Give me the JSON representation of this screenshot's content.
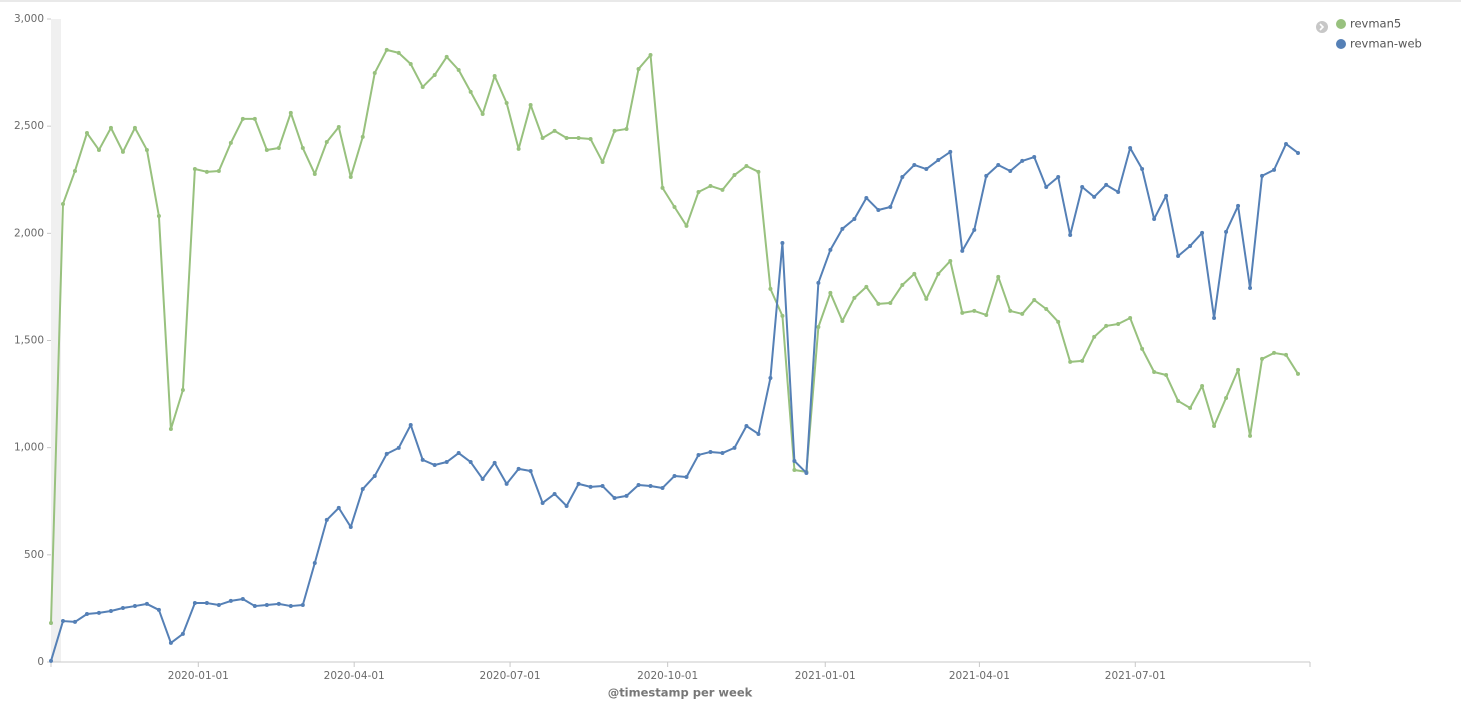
{
  "chart_data": {
    "type": "line",
    "x_label": "@timestamp per week",
    "x": [
      "2019-10-07",
      "2019-10-14",
      "2019-10-21",
      "2019-10-28",
      "2019-11-04",
      "2019-11-11",
      "2019-11-18",
      "2019-11-25",
      "2019-12-02",
      "2019-12-09",
      "2019-12-16",
      "2019-12-23",
      "2019-12-30",
      "2020-01-06",
      "2020-01-13",
      "2020-01-20",
      "2020-01-27",
      "2020-02-03",
      "2020-02-10",
      "2020-02-17",
      "2020-02-24",
      "2020-03-02",
      "2020-03-09",
      "2020-03-16",
      "2020-03-23",
      "2020-03-30",
      "2020-04-06",
      "2020-04-13",
      "2020-04-20",
      "2020-04-27",
      "2020-05-04",
      "2020-05-11",
      "2020-05-18",
      "2020-05-25",
      "2020-06-01",
      "2020-06-08",
      "2020-06-15",
      "2020-06-22",
      "2020-06-29",
      "2020-07-06",
      "2020-07-13",
      "2020-07-20",
      "2020-07-27",
      "2020-08-03",
      "2020-08-10",
      "2020-08-17",
      "2020-08-24",
      "2020-08-31",
      "2020-09-07",
      "2020-09-14",
      "2020-09-21",
      "2020-09-28",
      "2020-10-05",
      "2020-10-12",
      "2020-10-19",
      "2020-10-26",
      "2020-11-02",
      "2020-11-09",
      "2020-11-16",
      "2020-11-23",
      "2020-11-30",
      "2020-12-07",
      "2020-12-14",
      "2020-12-21",
      "2020-12-28",
      "2021-01-04",
      "2021-01-11",
      "2021-01-18",
      "2021-01-25",
      "2021-02-01",
      "2021-02-08",
      "2021-02-15",
      "2021-02-22",
      "2021-03-01",
      "2021-03-08",
      "2021-03-15",
      "2021-03-22",
      "2021-03-29",
      "2021-04-05",
      "2021-04-12",
      "2021-04-19",
      "2021-04-26",
      "2021-05-03",
      "2021-05-10",
      "2021-05-17",
      "2021-05-24",
      "2021-05-31",
      "2021-06-07",
      "2021-06-14",
      "2021-06-21",
      "2021-06-28",
      "2021-07-05",
      "2021-07-12",
      "2021-07-19",
      "2021-07-26",
      "2021-08-02",
      "2021-08-09",
      "2021-08-16",
      "2021-08-23",
      "2021-08-30",
      "2021-09-06",
      "2021-09-13",
      "2021-09-20",
      "2021-09-27",
      "2021-10-04"
    ],
    "series": [
      {
        "name": "revman5",
        "color": "#98c17e",
        "values": [
          182,
          2137,
          2291,
          2468,
          2389,
          2492,
          2380,
          2492,
          2389,
          2081,
          1087,
          1269,
          2300,
          2287,
          2291,
          2422,
          2534,
          2534,
          2389,
          2398,
          2562,
          2398,
          2277,
          2426,
          2496,
          2263,
          2450,
          2748,
          2856,
          2842,
          2790,
          2683,
          2739,
          2823,
          2762,
          2660,
          2557,
          2734,
          2608,
          2394,
          2599,
          2445,
          2478,
          2445,
          2445,
          2440,
          2333,
          2478,
          2487,
          2767,
          2832,
          2212,
          2123,
          2035,
          2193,
          2221,
          2203,
          2272,
          2314,
          2287,
          1741,
          1615,
          896,
          887,
          1563,
          1722,
          1591,
          1699,
          1750,
          1671,
          1675,
          1759,
          1811,
          1694,
          1811,
          1871,
          1629,
          1638,
          1619,
          1797,
          1638,
          1624,
          1689,
          1647,
          1587,
          1400,
          1405,
          1517,
          1568,
          1577,
          1605,
          1461,
          1353,
          1339,
          1218,
          1185,
          1288,
          1101,
          1232,
          1363,
          1055,
          1414,
          1442,
          1433,
          1344
        ]
      },
      {
        "name": "revman-web",
        "color": "#5580b6",
        "values": [
          5,
          191,
          187,
          224,
          229,
          238,
          252,
          261,
          271,
          243,
          89,
          131,
          275,
          275,
          266,
          285,
          294,
          261,
          266,
          271,
          261,
          266,
          462,
          663,
          719,
          630,
          807,
          868,
          971,
          999,
          1106,
          943,
          919,
          933,
          975,
          933,
          854,
          929,
          831,
          901,
          891,
          742,
          784,
          728,
          831,
          817,
          821,
          765,
          775,
          826,
          821,
          812,
          868,
          863,
          966,
          980,
          975,
          999,
          1101,
          1064,
          1325,
          1955,
          938,
          882,
          1769,
          1923,
          2021,
          2067,
          2165,
          2109,
          2123,
          2263,
          2319,
          2300,
          2342,
          2380,
          1918,
          2016,
          2268,
          2319,
          2291,
          2338,
          2356,
          2216,
          2263,
          1992,
          2216,
          2170,
          2226,
          2193,
          2398,
          2300,
          2067,
          2175,
          1894,
          1941,
          2002,
          1605,
          2007,
          2128,
          1745,
          2268,
          2296,
          2417,
          2375
        ]
      }
    ],
    "xlim": [
      "2019-10-07",
      "2021-10-11"
    ],
    "xticks": [
      "2020-01-01",
      "2020-04-01",
      "2020-07-01",
      "2020-10-01",
      "2021-01-01",
      "2021-04-01",
      "2021-07-01"
    ],
    "ylim": [
      0,
      3000
    ],
    "yticks": [
      0,
      500,
      {
        "value": 1000,
        "label": "1,000"
      },
      {
        "value": 1500,
        "label": "1,500"
      },
      {
        "value": 2000,
        "label": "2,000"
      },
      {
        "value": 2500,
        "label": "2,500"
      },
      {
        "value": 3000,
        "label": "3,000"
      }
    ],
    "grid": false,
    "legend": "top-right"
  }
}
